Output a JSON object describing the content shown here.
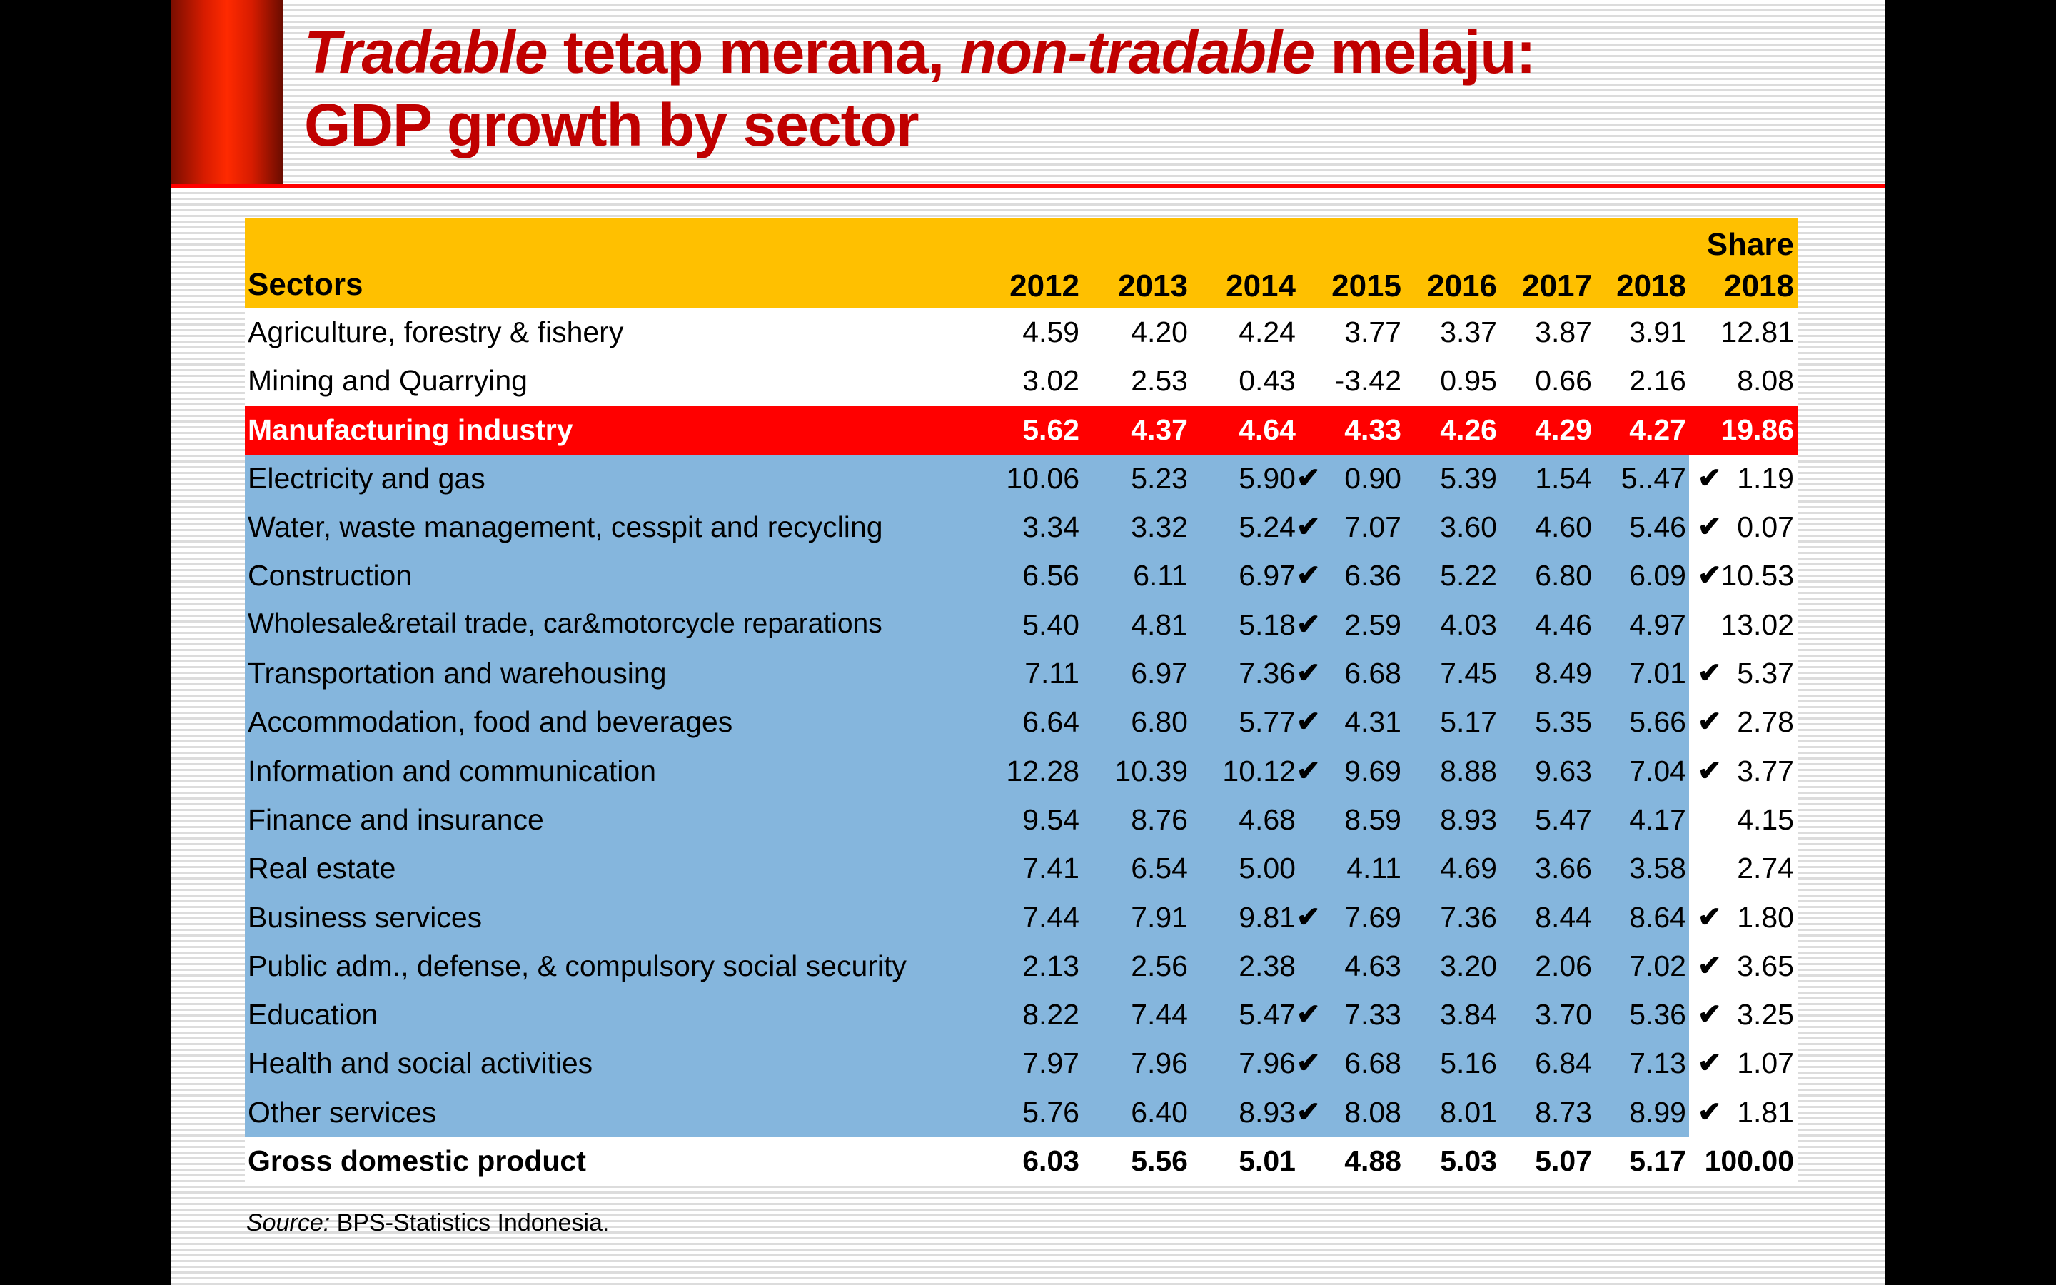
{
  "title": {
    "line1_italic_a": "Tradable",
    "line1_plain_a": " tetap merana, ",
    "line1_italic_b": "non-tradable",
    "line1_plain_b": " melaju:",
    "line2": "GDP growth by sector"
  },
  "colors": {
    "title": "#c00000",
    "header_bg": "#ffc000",
    "manufacturing_bg": "#ff0000",
    "non_tradable_bg": "#85b6dd",
    "accent_rule": "#ff0000"
  },
  "table": {
    "headers": {
      "sector": "Sectors",
      "years": [
        "2012",
        "2013",
        "2014",
        "2015",
        "2016",
        "2017",
        "2018"
      ],
      "share_line1": "Share",
      "share_line2": "2018"
    },
    "check_symbol": "✔",
    "rows": [
      {
        "name": "Agriculture, forestry & fishery",
        "style": "white",
        "values": [
          "4.59",
          "4.20",
          "4.24",
          "3.77",
          "3.37",
          "3.87",
          "3.91"
        ],
        "check2014": false,
        "checkShare": false,
        "share": "12.81"
      },
      {
        "name": "Mining and Quarrying",
        "style": "white",
        "values": [
          "3.02",
          "2.53",
          "0.43",
          "-3.42",
          "0.95",
          "0.66",
          "2.16"
        ],
        "check2014": false,
        "checkShare": false,
        "share": "8.08"
      },
      {
        "name": "Manufacturing industry",
        "style": "manuf",
        "values": [
          "5.62",
          "4.37",
          "4.64",
          "4.33",
          "4.26",
          "4.29",
          "4.27"
        ],
        "check2014": false,
        "checkShare": false,
        "share": "19.86"
      },
      {
        "name": "Electricity and gas",
        "style": "blue",
        "values": [
          "10.06",
          "5.23",
          "5.90",
          "0.90",
          "5.39",
          "1.54",
          "5..47"
        ],
        "check2014": true,
        "checkShare": true,
        "share": "1.19"
      },
      {
        "name": "Water, waste management, cesspit and recycling",
        "style": "blue",
        "values": [
          "3.34",
          "3.32",
          "5.24",
          "7.07",
          "3.60",
          "4.60",
          "5.46"
        ],
        "check2014": true,
        "checkShare": true,
        "share": "0.07"
      },
      {
        "name": "Construction",
        "style": "blue",
        "values": [
          "6.56",
          "6.11",
          "6.97",
          "6.36",
          "5.22",
          "6.80",
          "6.09"
        ],
        "check2014": true,
        "checkShare": true,
        "share": "10.53"
      },
      {
        "name": "Wholesale&retail trade, car&motorcycle reparations",
        "style": "blue",
        "values": [
          "5.40",
          "4.81",
          "5.18",
          "2.59",
          "4.03",
          "4.46",
          "4.97"
        ],
        "check2014": true,
        "checkShare": false,
        "share": "13.02"
      },
      {
        "name": "Transportation and warehousing",
        "style": "blue",
        "values": [
          "7.11",
          "6.97",
          "7.36",
          "6.68",
          "7.45",
          "8.49",
          "7.01"
        ],
        "check2014": true,
        "checkShare": true,
        "share": "5.37"
      },
      {
        "name": "Accommodation, food and beverages",
        "style": "blue",
        "values": [
          "6.64",
          "6.80",
          "5.77",
          "4.31",
          "5.17",
          "5.35",
          "5.66"
        ],
        "check2014": true,
        "checkShare": true,
        "share": "2.78"
      },
      {
        "name": "Information and communication",
        "style": "blue",
        "values": [
          "12.28",
          "10.39",
          "10.12",
          "9.69",
          "8.88",
          "9.63",
          "7.04"
        ],
        "check2014": true,
        "checkShare": true,
        "share": "3.77"
      },
      {
        "name": "Finance and insurance",
        "style": "blue",
        "values": [
          "9.54",
          "8.76",
          "4.68",
          "8.59",
          "8.93",
          "5.47",
          "4.17"
        ],
        "check2014": false,
        "checkShare": false,
        "share": "4.15"
      },
      {
        "name": "Real estate",
        "style": "blue",
        "values": [
          "7.41",
          "6.54",
          "5.00",
          "4.11",
          "4.69",
          "3.66",
          "3.58"
        ],
        "check2014": false,
        "checkShare": false,
        "share": "2.74"
      },
      {
        "name": "Business services",
        "style": "blue",
        "values": [
          "7.44",
          "7.91",
          "9.81",
          "7.69",
          "7.36",
          "8.44",
          "8.64"
        ],
        "check2014": true,
        "checkShare": true,
        "share": "1.80"
      },
      {
        "name": "Public adm., defense, & compulsory social security",
        "style": "blue",
        "values": [
          "2.13",
          "2.56",
          "2.38",
          "4.63",
          "3.20",
          "2.06",
          "7.02"
        ],
        "check2014": false,
        "checkShare": true,
        "share": "3.65"
      },
      {
        "name": "Education",
        "style": "blue",
        "values": [
          "8.22",
          "7.44",
          "5.47",
          "7.33",
          "3.84",
          "3.70",
          "5.36"
        ],
        "check2014": true,
        "checkShare": true,
        "share": "3.25"
      },
      {
        "name": "Health and social activities",
        "style": "blue",
        "values": [
          "7.97",
          "7.96",
          "7.96",
          "6.68",
          "5.16",
          "6.84",
          "7.13"
        ],
        "check2014": true,
        "checkShare": true,
        "share": "1.07"
      },
      {
        "name": "Other services",
        "style": "blue",
        "values": [
          "5.76",
          "6.40",
          "8.93",
          "8.08",
          "8.01",
          "8.73",
          "8.99"
        ],
        "check2014": true,
        "checkShare": true,
        "share": "1.81"
      },
      {
        "name": "Gross domestic product",
        "style": "gdp",
        "values": [
          "6.03",
          "5.56",
          "5.01",
          "4.88",
          "5.03",
          "5.07",
          "5.17"
        ],
        "check2014": false,
        "checkShare": false,
        "share": "100.00"
      }
    ]
  },
  "source": {
    "label": "Source:",
    "text": " BPS-Statistics Indonesia."
  }
}
